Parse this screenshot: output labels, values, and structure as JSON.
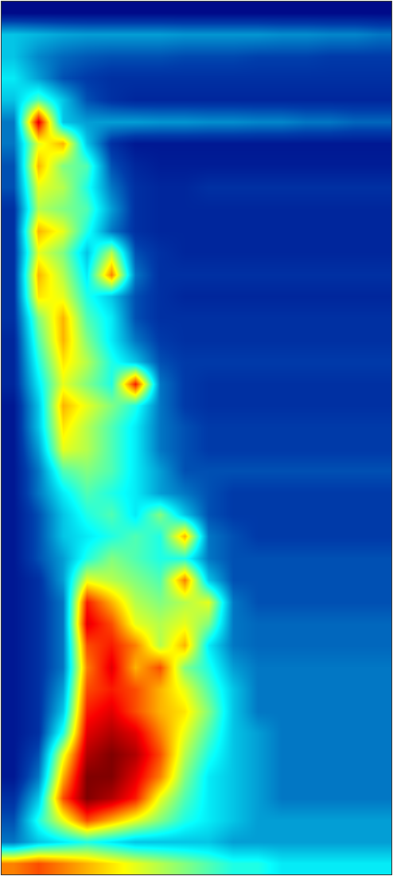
{
  "chart_data": {
    "type": "heatmap",
    "tick_labels": false,
    "xlim": [
      -0.5,
      15.5
    ],
    "ylim": [
      39.5,
      -0.5
    ],
    "zlim": [
      0,
      1
    ],
    "cells": [
      [
        0.02,
        0.02,
        0.02,
        0.02,
        0.02,
        0.02,
        0.02,
        0.02,
        0.02,
        0.02,
        0.02,
        0.02,
        0.02,
        0.02,
        0.02,
        0.02
      ],
      [
        0.3,
        0.28,
        0.26,
        0.25,
        0.25,
        0.25,
        0.25,
        0.24,
        0.24,
        0.24,
        0.24,
        0.23,
        0.23,
        0.22,
        0.22,
        0.2
      ],
      [
        0.3,
        0.22,
        0.18,
        0.16,
        0.15,
        0.15,
        0.15,
        0.14,
        0.14,
        0.14,
        0.13,
        0.13,
        0.13,
        0.12,
        0.12,
        0.12
      ],
      [
        0.35,
        0.25,
        0.15,
        0.12,
        0.1,
        0.1,
        0.1,
        0.1,
        0.1,
        0.1,
        0.1,
        0.1,
        0.1,
        0.1,
        0.1,
        0.1
      ],
      [
        0.3,
        0.45,
        0.3,
        0.15,
        0.1,
        0.08,
        0.08,
        0.08,
        0.08,
        0.08,
        0.08,
        0.08,
        0.08,
        0.08,
        0.08,
        0.08
      ],
      [
        0.2,
        0.9,
        0.3,
        0.25,
        0.25,
        0.25,
        0.24,
        0.24,
        0.23,
        0.23,
        0.22,
        0.22,
        0.2,
        0.2,
        0.18,
        0.18
      ],
      [
        0.2,
        0.6,
        0.7,
        0.3,
        0.1,
        0.05,
        0.05,
        0.05,
        0.05,
        0.05,
        0.05,
        0.05,
        0.05,
        0.05,
        0.05,
        0.05
      ],
      [
        0.15,
        0.7,
        0.5,
        0.45,
        0.15,
        0.08,
        0.06,
        0.06,
        0.06,
        0.06,
        0.06,
        0.06,
        0.06,
        0.06,
        0.06,
        0.06
      ],
      [
        0.15,
        0.6,
        0.55,
        0.4,
        0.2,
        0.1,
        0.08,
        0.08,
        0.1,
        0.1,
        0.1,
        0.1,
        0.1,
        0.1,
        0.1,
        0.1
      ],
      [
        0.1,
        0.55,
        0.5,
        0.45,
        0.25,
        0.1,
        0.08,
        0.08,
        0.08,
        0.08,
        0.08,
        0.08,
        0.08,
        0.08,
        0.08,
        0.08
      ],
      [
        0.1,
        0.7,
        0.6,
        0.4,
        0.2,
        0.1,
        0.08,
        0.08,
        0.08,
        0.08,
        0.08,
        0.08,
        0.08,
        0.08,
        0.08,
        0.08
      ],
      [
        0.1,
        0.6,
        0.5,
        0.3,
        0.55,
        0.15,
        0.1,
        0.08,
        0.08,
        0.08,
        0.08,
        0.08,
        0.08,
        0.08,
        0.08,
        0.08
      ],
      [
        0.1,
        0.7,
        0.55,
        0.35,
        0.75,
        0.2,
        0.1,
        0.1,
        0.1,
        0.1,
        0.1,
        0.1,
        0.1,
        0.1,
        0.1,
        0.1
      ],
      [
        0.1,
        0.65,
        0.6,
        0.4,
        0.3,
        0.15,
        0.1,
        0.08,
        0.08,
        0.08,
        0.08,
        0.08,
        0.08,
        0.08,
        0.08,
        0.08
      ],
      [
        0.1,
        0.5,
        0.7,
        0.45,
        0.35,
        0.15,
        0.1,
        0.1,
        0.1,
        0.1,
        0.1,
        0.1,
        0.1,
        0.1,
        0.1,
        0.1
      ],
      [
        0.08,
        0.45,
        0.7,
        0.5,
        0.35,
        0.2,
        0.12,
        0.1,
        0.1,
        0.1,
        0.1,
        0.1,
        0.1,
        0.1,
        0.1,
        0.1
      ],
      [
        0.08,
        0.4,
        0.65,
        0.55,
        0.4,
        0.3,
        0.15,
        0.12,
        0.12,
        0.12,
        0.12,
        0.12,
        0.12,
        0.12,
        0.12,
        0.12
      ],
      [
        0.08,
        0.35,
        0.6,
        0.5,
        0.4,
        0.85,
        0.2,
        0.12,
        0.1,
        0.1,
        0.1,
        0.1,
        0.1,
        0.1,
        0.1,
        0.1
      ],
      [
        0.05,
        0.3,
        0.7,
        0.6,
        0.5,
        0.4,
        0.2,
        0.12,
        0.1,
        0.1,
        0.1,
        0.1,
        0.1,
        0.1,
        0.1,
        0.1
      ],
      [
        0.05,
        0.3,
        0.65,
        0.55,
        0.45,
        0.35,
        0.2,
        0.15,
        0.12,
        0.12,
        0.12,
        0.12,
        0.12,
        0.12,
        0.12,
        0.12
      ],
      [
        0.05,
        0.25,
        0.6,
        0.55,
        0.45,
        0.35,
        0.2,
        0.15,
        0.12,
        0.12,
        0.12,
        0.12,
        0.12,
        0.12,
        0.12,
        0.12
      ],
      [
        0.05,
        0.2,
        0.45,
        0.5,
        0.45,
        0.35,
        0.25,
        0.15,
        0.15,
        0.15,
        0.15,
        0.15,
        0.15,
        0.15,
        0.15,
        0.15
      ],
      [
        0.05,
        0.2,
        0.35,
        0.45,
        0.4,
        0.35,
        0.25,
        0.2,
        0.15,
        0.12,
        0.12,
        0.12,
        0.12,
        0.12,
        0.12,
        0.12
      ],
      [
        0.05,
        0.15,
        0.3,
        0.4,
        0.45,
        0.35,
        0.5,
        0.3,
        0.15,
        0.12,
        0.12,
        0.12,
        0.12,
        0.12,
        0.12,
        0.12
      ],
      [
        0.05,
        0.15,
        0.3,
        0.35,
        0.4,
        0.45,
        0.4,
        0.7,
        0.2,
        0.15,
        0.12,
        0.12,
        0.12,
        0.12,
        0.12,
        0.12
      ],
      [
        0.05,
        0.15,
        0.25,
        0.4,
        0.5,
        0.45,
        0.4,
        0.4,
        0.2,
        0.15,
        0.15,
        0.15,
        0.15,
        0.15,
        0.15,
        0.15
      ],
      [
        0.05,
        0.1,
        0.25,
        0.6,
        0.55,
        0.5,
        0.45,
        0.75,
        0.3,
        0.15,
        0.15,
        0.15,
        0.15,
        0.15,
        0.15,
        0.15
      ],
      [
        0.05,
        0.1,
        0.2,
        0.85,
        0.7,
        0.55,
        0.5,
        0.55,
        0.6,
        0.2,
        0.15,
        0.15,
        0.15,
        0.15,
        0.15,
        0.15
      ],
      [
        0.05,
        0.1,
        0.2,
        0.9,
        0.8,
        0.6,
        0.55,
        0.6,
        0.5,
        0.2,
        0.18,
        0.18,
        0.18,
        0.18,
        0.18,
        0.18
      ],
      [
        0.05,
        0.1,
        0.2,
        0.8,
        0.85,
        0.75,
        0.55,
        0.7,
        0.35,
        0.2,
        0.18,
        0.18,
        0.18,
        0.18,
        0.18,
        0.18
      ],
      [
        0.05,
        0.1,
        0.2,
        0.75,
        0.9,
        0.7,
        0.8,
        0.5,
        0.4,
        0.25,
        0.2,
        0.2,
        0.2,
        0.2,
        0.2,
        0.2
      ],
      [
        0.05,
        0.1,
        0.25,
        0.8,
        0.85,
        0.8,
        0.7,
        0.6,
        0.45,
        0.3,
        0.2,
        0.2,
        0.2,
        0.2,
        0.2,
        0.2
      ],
      [
        0.05,
        0.1,
        0.3,
        0.85,
        0.9,
        0.8,
        0.7,
        0.65,
        0.5,
        0.3,
        0.2,
        0.2,
        0.2,
        0.2,
        0.2,
        0.2
      ],
      [
        0.05,
        0.1,
        0.4,
        0.9,
        0.95,
        0.9,
        0.75,
        0.6,
        0.45,
        0.3,
        0.25,
        0.2,
        0.2,
        0.2,
        0.2,
        0.2
      ],
      [
        0.05,
        0.15,
        0.6,
        0.95,
        1,
        0.95,
        0.8,
        0.55,
        0.4,
        0.3,
        0.25,
        0.2,
        0.2,
        0.2,
        0.2,
        0.2
      ],
      [
        0.05,
        0.2,
        0.7,
        1,
        1,
        0.9,
        0.75,
        0.5,
        0.35,
        0.3,
        0.25,
        0.2,
        0.2,
        0.2,
        0.2,
        0.2
      ],
      [
        0.1,
        0.3,
        0.8,
        1,
        0.95,
        0.85,
        0.6,
        0.45,
        0.35,
        0.3,
        0.25,
        0.2,
        0.2,
        0.2,
        0.2,
        0.2
      ],
      [
        0.15,
        0.4,
        0.6,
        0.8,
        0.7,
        0.6,
        0.5,
        0.4,
        0.35,
        0.3,
        0.25,
        0.25,
        0.25,
        0.25,
        0.25,
        0.25
      ],
      [
        0.2,
        0.3,
        0.35,
        0.4,
        0.35,
        0.3,
        0.3,
        0.3,
        0.3,
        0.25,
        0.25,
        0.25,
        0.25,
        0.25,
        0.25,
        0.25
      ],
      [
        0.75,
        0.8,
        0.75,
        0.7,
        0.65,
        0.6,
        0.55,
        0.5,
        0.45,
        0.4,
        0.4,
        0.35,
        0.35,
        0.35,
        0.35,
        0.35
      ]
    ]
  }
}
